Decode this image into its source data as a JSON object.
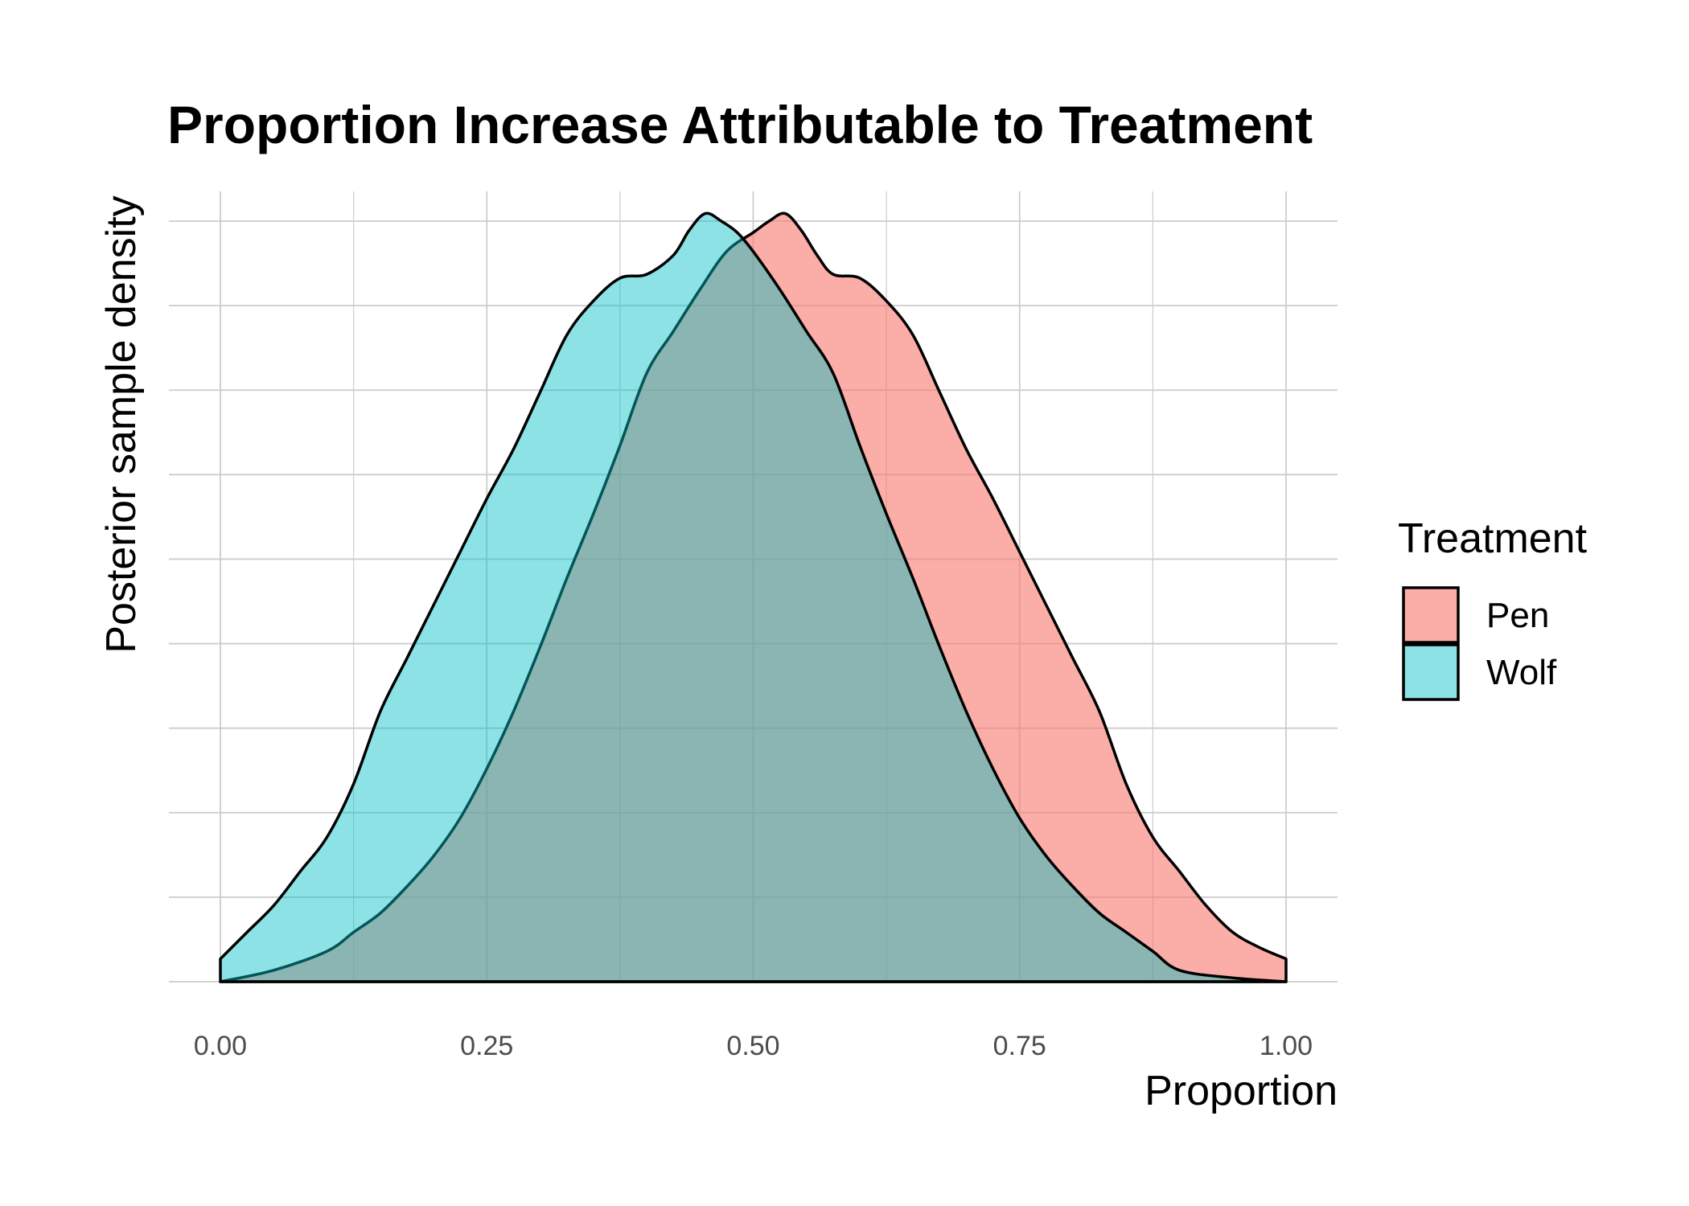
{
  "chart_data": {
    "type": "area",
    "title": "Proportion Increase Attributable to Treatment",
    "xlabel": "Proportion",
    "ylabel": "Posterior sample density",
    "xlim": [
      0,
      1
    ],
    "ylim": [
      0,
      1
    ],
    "x_ticks": [
      0,
      0.25,
      0.5,
      0.75,
      1.0
    ],
    "x_tick_labels": [
      "0.00",
      "0.25",
      "0.50",
      "0.75",
      "1.00"
    ],
    "y_tick_labels_shown": false,
    "grid": true,
    "legend": {
      "title": "Treatment",
      "position": "right"
    },
    "series": [
      {
        "name": "Pen",
        "color": "#F8766D",
        "opacity": 0.6,
        "x": [
          0.0,
          0.05,
          0.1,
          0.125,
          0.15,
          0.175,
          0.2,
          0.225,
          0.25,
          0.275,
          0.3,
          0.325,
          0.35,
          0.375,
          0.4,
          0.425,
          0.45,
          0.475,
          0.5,
          0.515,
          0.53,
          0.545,
          0.56,
          0.575,
          0.6,
          0.625,
          0.65,
          0.675,
          0.7,
          0.725,
          0.75,
          0.775,
          0.8,
          0.825,
          0.85,
          0.875,
          0.9,
          0.925,
          0.95,
          0.975,
          1.0
        ],
        "y": [
          0.0,
          0.015,
          0.04,
          0.065,
          0.09,
          0.125,
          0.165,
          0.215,
          0.28,
          0.355,
          0.44,
          0.53,
          0.615,
          0.705,
          0.8,
          0.855,
          0.91,
          0.96,
          0.985,
          1.0,
          1.01,
          0.988,
          0.955,
          0.93,
          0.925,
          0.895,
          0.85,
          0.775,
          0.7,
          0.635,
          0.565,
          0.495,
          0.425,
          0.355,
          0.26,
          0.19,
          0.145,
          0.1,
          0.065,
          0.045,
          0.03
        ]
      },
      {
        "name": "Wolf",
        "color": "#00BFC4",
        "opacity": 0.45,
        "x": [
          0.0,
          0.025,
          0.05,
          0.075,
          0.1,
          0.125,
          0.15,
          0.175,
          0.2,
          0.225,
          0.25,
          0.275,
          0.3,
          0.325,
          0.35,
          0.375,
          0.4,
          0.425,
          0.44,
          0.455,
          0.47,
          0.485,
          0.5,
          0.525,
          0.55,
          0.575,
          0.6,
          0.625,
          0.65,
          0.675,
          0.7,
          0.725,
          0.75,
          0.775,
          0.8,
          0.825,
          0.85,
          0.875,
          0.9,
          0.95,
          1.0
        ],
        "y": [
          0.03,
          0.065,
          0.1,
          0.145,
          0.19,
          0.26,
          0.355,
          0.425,
          0.495,
          0.565,
          0.635,
          0.7,
          0.775,
          0.85,
          0.895,
          0.925,
          0.93,
          0.955,
          0.988,
          1.01,
          1.0,
          0.985,
          0.96,
          0.91,
          0.855,
          0.8,
          0.705,
          0.615,
          0.53,
          0.44,
          0.355,
          0.28,
          0.215,
          0.165,
          0.125,
          0.09,
          0.065,
          0.04,
          0.015,
          0.005,
          0.0
        ]
      }
    ]
  }
}
